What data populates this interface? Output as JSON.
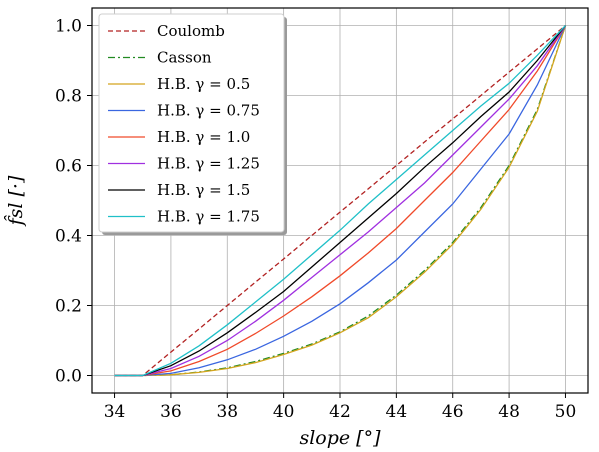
{
  "chart_data": {
    "type": "line",
    "xlabel": "slope [°]",
    "ylabel": "f̂sl [·]",
    "xlim": [
      33.2,
      50.8
    ],
    "ylim": [
      -0.05,
      1.05
    ],
    "xticks": [
      "34",
      "36",
      "38",
      "40",
      "42",
      "44",
      "46",
      "48",
      "50"
    ],
    "yticks": [
      "0.0",
      "0.2",
      "0.4",
      "0.6",
      "0.8",
      "1.0"
    ],
    "grid": true,
    "legend_position": "upper-left",
    "x": [
      34,
      35,
      36,
      37,
      38,
      39,
      40,
      41,
      42,
      43,
      44,
      45,
      46,
      47,
      48,
      49,
      50
    ],
    "series": [
      {
        "name": "Coulomb",
        "color": "#b22222",
        "dash": "dashed",
        "values": [
          0.0,
          0.0,
          0.067,
          0.133,
          0.2,
          0.267,
          0.333,
          0.4,
          0.467,
          0.533,
          0.6,
          0.667,
          0.733,
          0.8,
          0.867,
          0.933,
          1.0
        ]
      },
      {
        "name": "Casson",
        "color": "#228b22",
        "dash": "dashdot",
        "values": [
          0.0,
          0.0,
          0.002,
          0.01,
          0.022,
          0.04,
          0.063,
          0.09,
          0.125,
          0.17,
          0.23,
          0.3,
          0.38,
          0.48,
          0.6,
          0.76,
          1.0
        ]
      },
      {
        "name": "H.B. γ = 0.5",
        "color": "#d4a51e",
        "dash": "solid",
        "values": [
          0.0,
          0.0,
          0.002,
          0.009,
          0.02,
          0.037,
          0.06,
          0.087,
          0.122,
          0.165,
          0.225,
          0.295,
          0.375,
          0.475,
          0.595,
          0.755,
          1.0
        ]
      },
      {
        "name": "H.B. γ = 0.75",
        "color": "#3a66e0",
        "dash": "solid",
        "values": [
          0.0,
          0.0,
          0.006,
          0.022,
          0.045,
          0.075,
          0.112,
          0.155,
          0.205,
          0.265,
          0.33,
          0.41,
          0.49,
          0.59,
          0.69,
          0.83,
          1.0
        ]
      },
      {
        "name": "H.B. γ = 1.0",
        "color": "#f04a2a",
        "dash": "solid",
        "values": [
          0.0,
          0.0,
          0.013,
          0.04,
          0.075,
          0.12,
          0.17,
          0.225,
          0.285,
          0.35,
          0.42,
          0.5,
          0.58,
          0.67,
          0.76,
          0.87,
          1.0
        ]
      },
      {
        "name": "H.B. γ = 1.25",
        "color": "#a030e0",
        "dash": "solid",
        "values": [
          0.0,
          0.0,
          0.02,
          0.055,
          0.1,
          0.155,
          0.215,
          0.28,
          0.345,
          0.41,
          0.48,
          0.55,
          0.63,
          0.71,
          0.79,
          0.885,
          1.0
        ]
      },
      {
        "name": "H.B. γ = 1.5",
        "color": "#000000",
        "dash": "solid",
        "values": [
          0.0,
          0.0,
          0.028,
          0.07,
          0.122,
          0.18,
          0.24,
          0.31,
          0.38,
          0.45,
          0.52,
          0.595,
          0.665,
          0.74,
          0.81,
          0.9,
          1.0
        ]
      },
      {
        "name": "H.B. γ = 1.75",
        "color": "#20c0c8",
        "dash": "solid",
        "values": [
          0.0,
          0.0,
          0.035,
          0.085,
          0.145,
          0.21,
          0.275,
          0.345,
          0.415,
          0.49,
          0.56,
          0.63,
          0.7,
          0.77,
          0.835,
          0.915,
          1.0
        ]
      }
    ]
  }
}
